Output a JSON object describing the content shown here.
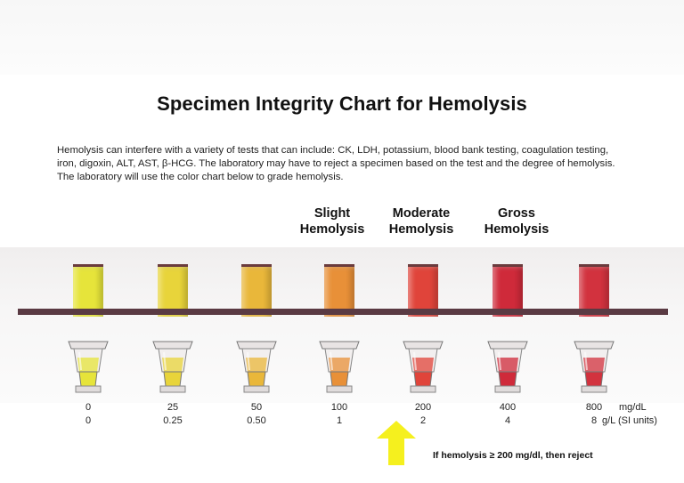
{
  "title": "Specimen Integrity Chart for Hemolysis",
  "intro_lines": [
    "Hemolysis can interfere with a variety of tests that can include: CK, LDH, potassium, blood bank testing, coagulation testing,",
    "iron, digoxin, ALT, AST, β-HCG. The laboratory may have to reject a specimen based on the test and the degree of hemolysis.",
    "The laboratory will use the color chart below to grade hemolysis."
  ],
  "categories": [
    {
      "line1": "Slight",
      "line2": "Hemolysis"
    },
    {
      "line1": "Moderate",
      "line2": "Hemolysis"
    },
    {
      "line1": "Gross",
      "line2": "Hemolysis"
    }
  ],
  "samples": [
    {
      "mg_dl": "0",
      "g_l": "0",
      "color": "#e6e43a"
    },
    {
      "mg_dl": "25",
      "g_l": "0.25",
      "color": "#e8d43a"
    },
    {
      "mg_dl": "50",
      "g_l": "0.50",
      "color": "#e9b73a"
    },
    {
      "mg_dl": "100",
      "g_l": "1",
      "color": "#e89038"
    },
    {
      "mg_dl": "200",
      "g_l": "2",
      "color": "#e0443a"
    },
    {
      "mg_dl": "400",
      "g_l": "4",
      "color": "#cf2a3a"
    },
    {
      "mg_dl": "800",
      "g_l": "8",
      "color": "#d2323e"
    }
  ],
  "unit_mg": "mg/dL",
  "unit_si": "g/L (SI units)",
  "reject_note": "If hemolysis ≥ 200 mg/dl, then reject",
  "colors": {
    "bar": "#5a3a43",
    "arrow": "#f5f01e"
  }
}
